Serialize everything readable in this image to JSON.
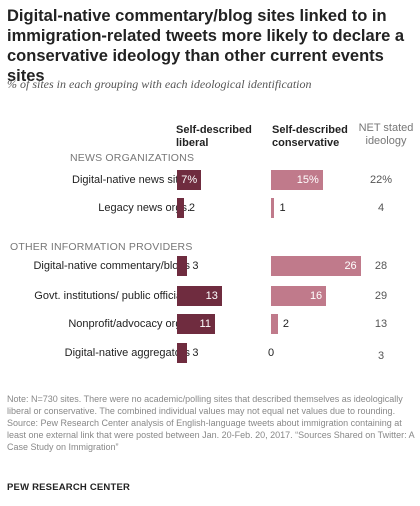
{
  "title": "Digital-native commentary/blog sites linked to in immigration-related tweets more likely to declare a conservative ideology than other current events sites",
  "subtitle": "% of sites in each grouping with each ideological identification",
  "columns": {
    "liberal": "Self-described liberal",
    "conservative": "Self-described conservative",
    "net": "NET stated ideology"
  },
  "sections": [
    "NEWS ORGANIZATIONS",
    "OTHER INFORMATION PROVIDERS"
  ],
  "colors": {
    "liberal": "#6f2c3f",
    "conservative": "#c07a8b"
  },
  "chart_data": {
    "type": "bar",
    "categories": [
      "Digital-native news sites",
      "Legacy news orgs.",
      "Digital-native commentary/blogs",
      "Govt. institutions/ public officials",
      "Nonprofit/advocacy orgs.",
      "Digital-native aggregators"
    ],
    "series": [
      {
        "name": "Self-described liberal",
        "values": [
          7,
          2,
          3,
          13,
          11,
          3
        ],
        "labels": [
          "7%",
          "2",
          "3",
          "13",
          "11",
          "3"
        ]
      },
      {
        "name": "Self-described conservative",
        "values": [
          15,
          1,
          26,
          16,
          2,
          0
        ],
        "labels": [
          "15%",
          "1",
          "26",
          "16",
          "2",
          "0"
        ]
      },
      {
        "name": "NET stated ideology",
        "values": [
          22,
          4,
          28,
          29,
          13,
          3
        ],
        "labels": [
          "22%",
          "4",
          "28",
          "29",
          "13",
          "3"
        ]
      }
    ]
  },
  "note": "Note: N=730 sites. There were no academic/polling sites that described themselves as ideologically liberal or conservative. The combined individual values may not equal net values due to rounding.",
  "source": "Source: Pew Research Center analysis of English-language tweets about immigration containing at least one external link that were posted between Jan. 20-Feb. 20, 2017. “Sources Shared on Twitter: A Case Study on Immigration”",
  "brand": "PEW RESEARCH CENTER"
}
